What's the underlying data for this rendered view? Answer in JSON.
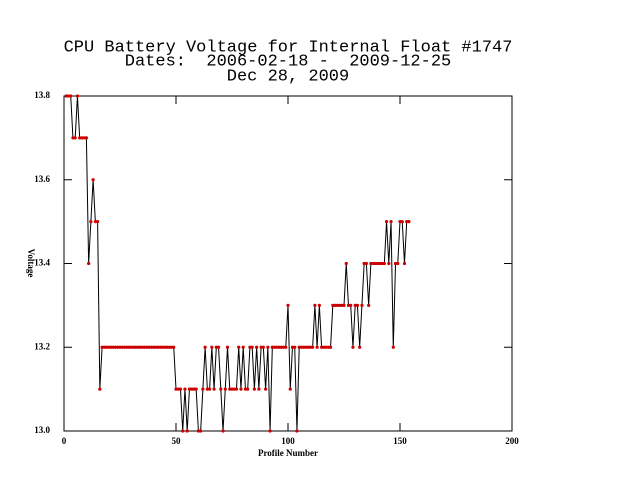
{
  "chart_data": {
    "type": "line",
    "title": "CPU Battery Voltage for Internal Float #1747",
    "subtitle": "Dates:  2006-02-18 -  2009-12-25",
    "date": "Dec 28, 2009",
    "xlabel": "Profile Number",
    "ylabel": "Voltage",
    "xlim": [
      0,
      200
    ],
    "xticks": [
      0,
      50,
      100,
      150,
      200
    ],
    "ylim": [
      13,
      13.8
    ],
    "yticks": [
      {
        "value": 13,
        "label": "13.0"
      },
      13.2,
      13.4,
      13.6,
      13.8
    ],
    "line_color": "#000000",
    "marker_color": "#cc0000",
    "x": [
      1,
      2,
      3,
      4,
      5,
      6,
      7,
      8,
      9,
      10,
      11,
      12,
      13,
      14,
      15,
      16,
      17,
      18,
      19,
      20,
      21,
      22,
      23,
      24,
      25,
      26,
      27,
      28,
      29,
      30,
      31,
      32,
      33,
      34,
      35,
      36,
      37,
      38,
      39,
      40,
      41,
      42,
      43,
      44,
      45,
      46,
      47,
      48,
      49,
      50,
      51,
      52,
      53,
      54,
      55,
      56,
      57,
      58,
      59,
      60,
      61,
      62,
      63,
      64,
      65,
      66,
      67,
      68,
      69,
      70,
      71,
      72,
      73,
      74,
      75,
      76,
      77,
      78,
      79,
      80,
      81,
      82,
      83,
      84,
      85,
      86,
      87,
      88,
      89,
      90,
      91,
      92,
      93,
      94,
      95,
      96,
      97,
      98,
      99,
      100,
      101,
      102,
      103,
      104,
      105,
      106,
      107,
      108,
      109,
      110,
      111,
      112,
      113,
      114,
      115,
      116,
      117,
      118,
      119,
      120,
      121,
      122,
      123,
      124,
      125,
      126,
      127,
      128,
      129,
      130,
      131,
      132,
      133,
      134,
      135,
      136,
      137,
      138,
      139,
      140,
      141,
      142,
      143,
      144,
      145,
      146,
      147,
      148,
      149,
      150,
      151,
      152,
      153,
      154
    ],
    "values": [
      13.8,
      13.8,
      13.8,
      13.7,
      13.7,
      13.8,
      13.7,
      13.7,
      13.7,
      13.7,
      13.4,
      13.5,
      13.6,
      13.5,
      13.5,
      13.1,
      13.2,
      13.2,
      13.2,
      13.2,
      13.2,
      13.2,
      13.2,
      13.2,
      13.2,
      13.2,
      13.2,
      13.2,
      13.2,
      13.2,
      13.2,
      13.2,
      13.2,
      13.2,
      13.2,
      13.2,
      13.2,
      13.2,
      13.2,
      13.2,
      13.2,
      13.2,
      13.2,
      13.2,
      13.2,
      13.2,
      13.2,
      13.2,
      13.2,
      13.1,
      13.1,
      13.1,
      13.0,
      13.1,
      13.0,
      13.1,
      13.1,
      13.1,
      13.1,
      13.0,
      13.0,
      13.1,
      13.2,
      13.1,
      13.1,
      13.2,
      13.1,
      13.2,
      13.2,
      13.1,
      13.0,
      13.1,
      13.2,
      13.1,
      13.1,
      13.1,
      13.1,
      13.2,
      13.1,
      13.2,
      13.1,
      13.1,
      13.2,
      13.2,
      13.1,
      13.2,
      13.1,
      13.2,
      13.2,
      13.1,
      13.2,
      13.0,
      13.2,
      13.2,
      13.2,
      13.2,
      13.2,
      13.2,
      13.2,
      13.3,
      13.1,
      13.2,
      13.2,
      13.0,
      13.2,
      13.2,
      13.2,
      13.2,
      13.2,
      13.2,
      13.2,
      13.3,
      13.2,
      13.3,
      13.2,
      13.2,
      13.2,
      13.2,
      13.2,
      13.3,
      13.3,
      13.3,
      13.3,
      13.3,
      13.3,
      13.4,
      13.3,
      13.3,
      13.2,
      13.3,
      13.3,
      13.2,
      13.3,
      13.4,
      13.4,
      13.3,
      13.4,
      13.4,
      13.4,
      13.4,
      13.4,
      13.4,
      13.4,
      13.5,
      13.4,
      13.5,
      13.2,
      13.4,
      13.4,
      13.5,
      13.5,
      13.4,
      13.5,
      13.5
    ]
  }
}
